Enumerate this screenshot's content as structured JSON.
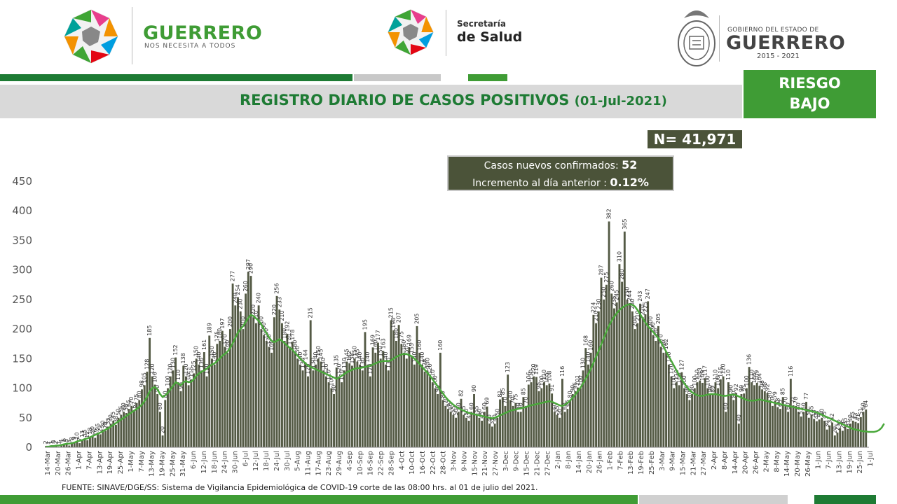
{
  "header": {
    "left_brand": "GUERRERO",
    "left_tagline": "NOS NECESITA A TODOS",
    "center_line1": "Secretaría",
    "center_line2": "de Salud",
    "right_line1": "GOBIERNO DEL ESTADO DE",
    "right_line2": "GUERRERO",
    "right_line3": "2015 - 2021"
  },
  "title": {
    "main": "REGISTRO DIARIO DE CASOS POSITIVOS",
    "date": "(01-Jul-2021)"
  },
  "risk": {
    "line1": "RIESGO",
    "line2": "BAJO"
  },
  "total": {
    "label": "N= 41,971"
  },
  "info": {
    "new_label": "Casos nuevos confirmados:",
    "new_value": "52",
    "inc_label": "Incremento al día anterior :",
    "inc_value": "0.12%"
  },
  "footer": {
    "source": "FUENTE: SINAVE/DGE/SS: Sistema de Vigilancia Epidemiológica de COVID-19 corte de las 08:00 hrs. al 01 de julio del 2021."
  },
  "colors": {
    "bar": "#545a45",
    "line": "#4aa83b",
    "green_dark": "#1e7b34",
    "green": "#3f9c35",
    "gray": "#d0d0d0"
  },
  "chart_data": {
    "type": "bar",
    "title": "REGISTRO DIARIO DE CASOS POSITIVOS",
    "ylim": [
      0,
      450
    ],
    "yticks": [
      0,
      50,
      100,
      150,
      200,
      250,
      300,
      350,
      400,
      450
    ],
    "grid": false,
    "x_tick_labels": [
      "14-Mar",
      "20-Mar",
      "26-Mar",
      "1-Apr",
      "7-Apr",
      "13-Apr",
      "19-Apr",
      "25-Apr",
      "1-May",
      "7-May",
      "13-May",
      "19-May",
      "25-May",
      "31-May",
      "6-Jun",
      "12-Jun",
      "18-Jun",
      "24-Jun",
      "30-Jun",
      "6-Jul",
      "12-Jul",
      "18-Jul",
      "24-Jul",
      "30-Jul",
      "5-Aug",
      "11-Aug",
      "17-Aug",
      "23-Aug",
      "29-Aug",
      "4-Sep",
      "10-Sep",
      "16-Sep",
      "22-Sep",
      "28-Sep",
      "4-Oct",
      "10-Oct",
      "16-Oct",
      "22-Oct",
      "28-Oct",
      "3-Nov",
      "9-Nov",
      "15-Nov",
      "21-Nov",
      "27-Nov",
      "3-Dec",
      "9-Dec",
      "15-Dec",
      "21-Dec",
      "27-Dec",
      "2-Jan",
      "8-Jan",
      "14-Jan",
      "20-Jan",
      "26-Jan",
      "1-Feb",
      "7-Feb",
      "13-Feb",
      "19-Feb",
      "25-Feb",
      "3-Mar",
      "9-Mar",
      "15-Mar",
      "21-Mar",
      "27-Mar",
      "2-Apr",
      "8-Apr",
      "14-Apr",
      "20-Apr",
      "26-Apr",
      "2-May",
      "8-May",
      "14-May",
      "20-May",
      "26-May",
      "1-Jun",
      "7-Jun",
      "13-Jun",
      "19-Jun",
      "25-Jun",
      "1-Jul"
    ],
    "series": [
      {
        "kind": "bar",
        "values": [
          2,
          1,
          1,
          3,
          2,
          1,
          4,
          6,
          5,
          3,
          8,
          9,
          10,
          7,
          13,
          15,
          12,
          18,
          20,
          16,
          25,
          22,
          30,
          28,
          35,
          40,
          45,
          38,
          50,
          55,
          60,
          58,
          65,
          70,
          62,
          75,
          80,
          98,
          105,
          128,
          185,
          120,
          106,
          90,
          60,
          20,
          80,
          100,
          120,
          130,
          152,
          110,
          95,
          138,
          120,
          105,
          115,
          125,
          150,
          140,
          130,
          161,
          120,
          189,
          150,
          140,
          175,
          180,
          197,
          170,
          160,
          200,
          277,
          240,
          254,
          230,
          200,
          260,
          297,
          290,
          220,
          210,
          240,
          200,
          190,
          180,
          170,
          160,
          220,
          256,
          233,
          210,
          180,
          192,
          170,
          178,
          160,
          150,
          140,
          130,
          144,
          120,
          215,
          130,
          140,
          150,
          145,
          130,
          120,
          110,
          100,
          90,
          135,
          120,
          110,
          130,
          145,
          142,
          138,
          150,
          145,
          140,
          130,
          195,
          140,
          120,
          169,
          160,
          177,
          150,
          163,
          140,
          130,
          215,
          198,
          180,
          207,
          175,
          160,
          150,
          169,
          155,
          140,
          205,
          160,
          140,
          128,
          130,
          120,
          110,
          100,
          90,
          160,
          80,
          70,
          65,
          60,
          55,
          50,
          60,
          82,
          55,
          50,
          45,
          60,
          90,
          55,
          50,
          45,
          60,
          69,
          40,
          35,
          40,
          50,
          81,
          85,
          70,
          123,
          80,
          70,
          75,
          60,
          60,
          85,
          70,
          106,
          110,
          120,
          119,
          95,
          100,
          110,
          105,
          108,
          91,
          60,
          55,
          50,
          116,
          60,
          65,
          80,
          90,
          95,
          101,
          100,
          130,
          168,
          140,
          160,
          224,
          210,
          230,
          287,
          250,
          275,
          382,
          260,
          235,
          245,
          310,
          280,
          365,
          250,
          244,
          230,
          200,
          210,
          243,
          220,
          225,
          247,
          200,
          190,
          180,
          205,
          170,
          160,
          162,
          140,
          120,
          100,
          110,
          105,
          127,
          100,
          90,
          80,
          90,
          100,
          110,
          113,
          109,
          117,
          100,
          90,
          89,
          110,
          100,
          115,
          120,
          60,
          110,
          90,
          80,
          92,
          40,
          90,
          91,
          100,
          136,
          110,
          105,
          109,
          104,
          98,
          95,
          92,
          80,
          70,
          79,
          68,
          65,
          85,
          70,
          60,
          116,
          71,
          70,
          60,
          52,
          60,
          77,
          50,
          55,
          48,
          44,
          47,
          50,
          45,
          30,
          37,
          42,
          20,
          25,
          32,
          28,
          35,
          31,
          40,
          45,
          43,
          41,
          51,
          60,
          64
        ]
      },
      {
        "kind": "line",
        "name": "promedio móvil",
        "values": [
          1,
          1,
          2,
          2,
          3,
          3,
          4,
          5,
          6,
          6,
          7,
          8,
          10,
          11,
          12,
          14,
          15,
          17,
          19,
          21,
          23,
          25,
          27,
          30,
          32,
          35,
          38,
          41,
          44,
          47,
          50,
          53,
          56,
          59,
          62,
          65,
          68,
          72,
          78,
          85,
          95,
          100,
          102,
          98,
          90,
          85,
          88,
          92,
          98,
          104,
          110,
          108,
          105,
          110,
          112,
          110,
          111,
          115,
          121,
          125,
          128,
          130,
          133,
          137,
          140,
          142,
          146,
          150,
          155,
          158,
          162,
          168,
          176,
          185,
          194,
          200,
          205,
          212,
          219,
          224,
          222,
          218,
          214,
          208,
          200,
          193,
          186,
          180,
          178,
          180,
          183,
          180,
          176,
          172,
          168,
          165,
          160,
          155,
          150,
          146,
          142,
          138,
          136,
          134,
          132,
          130,
          128,
          126,
          124,
          122,
          120,
          118,
          116,
          118,
          121,
          124,
          127,
          129,
          131,
          133,
          134,
          134,
          135,
          136,
          137,
          138,
          140,
          142,
          144,
          145,
          146,
          146,
          146,
          147,
          150,
          153,
          155,
          157,
          158,
          158,
          156,
          154,
          150,
          146,
          141,
          136,
          131,
          126,
          121,
          115,
          109,
          103,
          97,
          91,
          85,
          80,
          76,
          72,
          69,
          66,
          64,
          62,
          60,
          58,
          57,
          56,
          55,
          54,
          53,
          52,
          51,
          50,
          49,
          50,
          52,
          54,
          56,
          58,
          60,
          62,
          63,
          64,
          65,
          66,
          67,
          68,
          70,
          71,
          72,
          73,
          74,
          75,
          76,
          77,
          78,
          77,
          75,
          73,
          71,
          70,
          72,
          75,
          79,
          84,
          89,
          95,
          101,
          108,
          116,
          124,
          133,
          143,
          153,
          163,
          174,
          185,
          196,
          206,
          214,
          221,
          227,
          232,
          236,
          239,
          241,
          242,
          241,
          238,
          232,
          225,
          218,
          211,
          205,
          200,
          195,
          190,
          185,
          178,
          170,
          162,
          154,
          146,
          138,
          130,
          122,
          115,
          108,
          102,
          97,
          93,
          90,
          88,
          87,
          87,
          88,
          89,
          90,
          90,
          90,
          89,
          88,
          87,
          87,
          88,
          89,
          89,
          88,
          86,
          84,
          82,
          80,
          79,
          79,
          79,
          80,
          81,
          80,
          79,
          78,
          77,
          76,
          75,
          74,
          73,
          72,
          71,
          70,
          69,
          68,
          67,
          66,
          65,
          64,
          63,
          62,
          61,
          60,
          59,
          57,
          55,
          53,
          51,
          49,
          47,
          45,
          43,
          41,
          39,
          37,
          35,
          33,
          31,
          30,
          29,
          28,
          27,
          27,
          26,
          26,
          26,
          27,
          29,
          33,
          40
        ]
      }
    ]
  }
}
